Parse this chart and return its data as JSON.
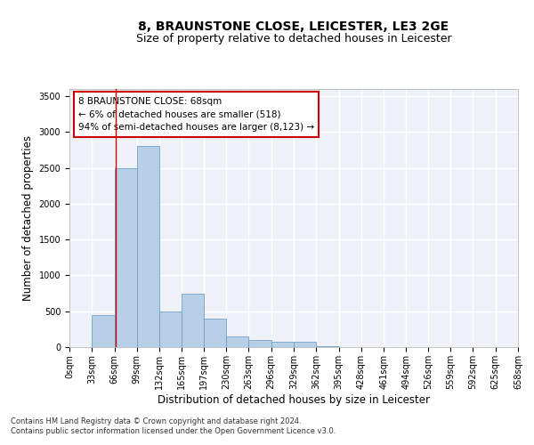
{
  "title": "8, BRAUNSTONE CLOSE, LEICESTER, LE3 2GE",
  "subtitle": "Size of property relative to detached houses in Leicester",
  "xlabel": "Distribution of detached houses by size in Leicester",
  "ylabel": "Number of detached properties",
  "footnote1": "Contains HM Land Registry data © Crown copyright and database right 2024.",
  "footnote2": "Contains public sector information licensed under the Open Government Licence v3.0.",
  "annotation_title": "8 BRAUNSTONE CLOSE: 68sqm",
  "annotation_line1": "← 6% of detached houses are smaller (518)",
  "annotation_line2": "94% of semi-detached houses are larger (8,123) →",
  "bar_color": "#b8cfe8",
  "bar_edge_color": "#6ea0c8",
  "vline_x": 68,
  "vline_color": "#cc0000",
  "bin_edges": [
    0,
    33,
    66,
    99,
    132,
    165,
    197,
    230,
    263,
    296,
    329,
    362,
    395,
    428,
    461,
    494,
    526,
    559,
    592,
    625,
    658
  ],
  "bar_heights": [
    5,
    450,
    2500,
    2800,
    500,
    750,
    400,
    150,
    100,
    75,
    75,
    10,
    0,
    0,
    0,
    0,
    0,
    0,
    0,
    2
  ],
  "ylim": [
    0,
    3600
  ],
  "yticks": [
    0,
    500,
    1000,
    1500,
    2000,
    2500,
    3000,
    3500
  ],
  "xlim_max": 658,
  "background_color": "#eef2f8",
  "grid_color": "#ffffff",
  "title_fontsize": 10,
  "subtitle_fontsize": 9,
  "axis_label_fontsize": 8.5,
  "tick_fontsize": 7,
  "annotation_fontsize": 7.5,
  "footnote_fontsize": 6
}
